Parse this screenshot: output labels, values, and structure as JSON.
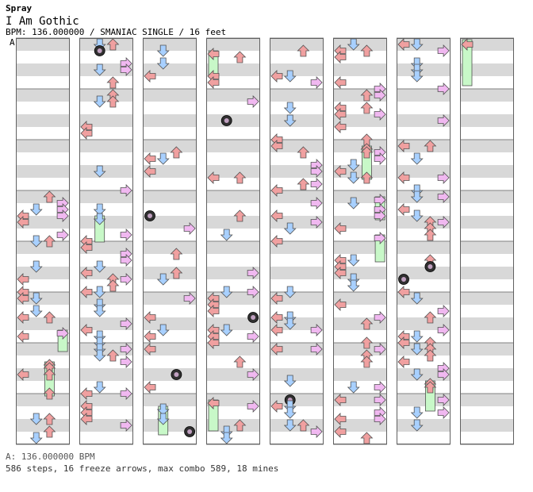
{
  "header": {
    "pack": "Spray",
    "song": "I Am Gothic",
    "meta": "BPM: 136.000000 / SMANIAC SINGLE / 16 feet"
  },
  "section_label": "A",
  "footer": {
    "bpm": "A: 136.000000 BPM",
    "stats": "586 steps, 16 freeze arrows, max combo 589, 18 mines"
  },
  "colors": {
    "left": "#f0a0a0",
    "down": "#a8d0ff",
    "up": "#f0a0a0",
    "right": "#f0b8f0",
    "freeze": "#c8f8c8",
    "band": "#d8d8d8",
    "mine": "#303030"
  },
  "chart_data": {
    "type": "table",
    "columns": 8,
    "lanes": [
      "left",
      "down",
      "up",
      "right"
    ]
  }
}
